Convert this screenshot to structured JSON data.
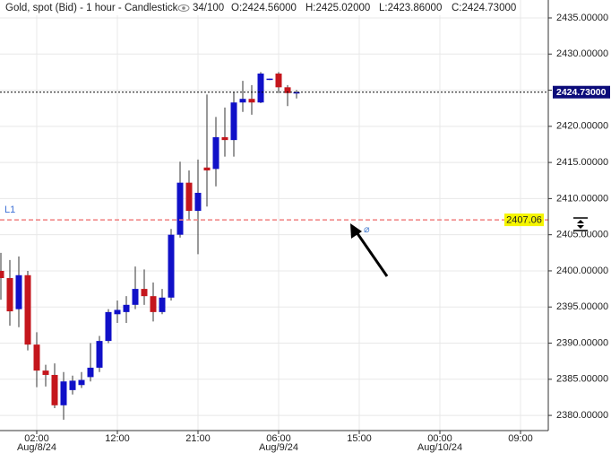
{
  "chart_data": {
    "type": "candlestick",
    "title": "Gold, spot (Bid) - 1 hour - Candlestick",
    "info": "34/100",
    "ohlc_labels": [
      "O:2424.56000",
      "H:2425.02000",
      "L:2423.86000",
      "C:2424.73000"
    ],
    "x": [
      0,
      1,
      2,
      3,
      4,
      5,
      6,
      7,
      8,
      9,
      10,
      11,
      12,
      13,
      14,
      15,
      16,
      17,
      18,
      19,
      20,
      21,
      22,
      23,
      24,
      25,
      26,
      27,
      28,
      29,
      30,
      31,
      32,
      33
    ],
    "open": [
      2400,
      2399,
      2394.7,
      2399.4,
      2389.8,
      2386.2,
      2385.6,
      2381.4,
      2383.5,
      2384.2,
      2385.3,
      2386.6,
      2390.3,
      2394,
      2394.3,
      2395.3,
      2397.5,
      2396.5,
      2394.3,
      2396.3,
      2405,
      2412.2,
      2408.3,
      2414.3,
      2414.1,
      2418.5,
      2418.1,
      2423.3,
      2423.8,
      2423.3,
      2426.5,
      2427.3,
      2425.4,
      2424.56
    ],
    "high": [
      2402.5,
      2401.5,
      2402,
      2400,
      2391.5,
      2387,
      2387.2,
      2386,
      2385.5,
      2386,
      2390,
      2391,
      2394.7,
      2395.9,
      2396.5,
      2400.6,
      2400.2,
      2398.4,
      2397.5,
      2405.8,
      2415.1,
      2413.9,
      2415.4,
      2424.4,
      2421.3,
      2422.6,
      2424.7,
      2426.3,
      2425.7,
      2427.5,
      2426.6,
      2427.5,
      2425.7,
      2425.02
    ],
    "low": [
      2396,
      2392.4,
      2392.2,
      2389,
      2383.9,
      2384,
      2381,
      2379.4,
      2382.9,
      2383.8,
      2384.7,
      2386,
      2390,
      2392.8,
      2392.8,
      2394.7,
      2395.3,
      2393,
      2394,
      2395.9,
      2404.6,
      2407.1,
      2402.3,
      2408.9,
      2411.7,
      2415.8,
      2415.8,
      2422,
      2421.6,
      2423.2,
      2426.4,
      2424.6,
      2422.8,
      2423.86
    ],
    "close": [
      2399,
      2394.4,
      2399.4,
      2389.8,
      2386.2,
      2385.6,
      2381.4,
      2384.7,
      2384.8,
      2384.9,
      2386.6,
      2390.3,
      2394.3,
      2394.6,
      2395.3,
      2397.5,
      2396.5,
      2394.3,
      2396.3,
      2405,
      2412.2,
      2408.3,
      2410.8,
      2413.9,
      2418.5,
      2418.1,
      2423.3,
      2423.8,
      2423.3,
      2427.3,
      2426.6,
      2425.4,
      2424.6,
      2424.73
    ],
    "up_color": "#1010c8",
    "down_color": "#c4161c",
    "xlim": [
      -0.1,
      61.1
    ],
    "xticks": [
      {
        "value": 4,
        "label": "02:00"
      },
      {
        "value": 13,
        "label": "12:00"
      },
      {
        "value": 22,
        "label": "21:00"
      },
      {
        "value": 31,
        "label": "06:00"
      },
      {
        "value": 40,
        "label": "15:00"
      },
      {
        "value": 49,
        "label": "00:00"
      },
      {
        "value": 58,
        "label": "09:00"
      }
    ],
    "x_date_labels": [
      {
        "value": 4,
        "label": "Aug/8/24"
      },
      {
        "value": 31,
        "label": "Aug/9/24"
      },
      {
        "value": 49,
        "label": "Aug/10/24"
      }
    ],
    "ylim": [
      2377.9,
      2437.48
    ],
    "yticks": [
      {
        "value": 2380,
        "label": "2380.00000"
      },
      {
        "value": 2385,
        "label": "2385.00000"
      },
      {
        "value": 2390,
        "label": "2390.00000"
      },
      {
        "value": 2395,
        "label": "2395.00000"
      },
      {
        "value": 2400,
        "label": "2400.00000"
      },
      {
        "value": 2405,
        "label": "2405.00000"
      },
      {
        "value": 2410,
        "label": "2410.00000"
      },
      {
        "value": 2415,
        "label": "2415.00000"
      },
      {
        "value": 2420,
        "label": "2420.00000"
      },
      {
        "value": 2425,
        "label": "2425.00000"
      },
      {
        "value": 2430,
        "label": "2430.00000"
      },
      {
        "value": 2435,
        "label": "2435.00000"
      }
    ],
    "grid": true,
    "current_price": {
      "value": 2424.73,
      "label": "2424.73000"
    },
    "hline": {
      "name": "L1",
      "value": 2407.06,
      "label": "2407.06",
      "color": "#f08080"
    }
  }
}
